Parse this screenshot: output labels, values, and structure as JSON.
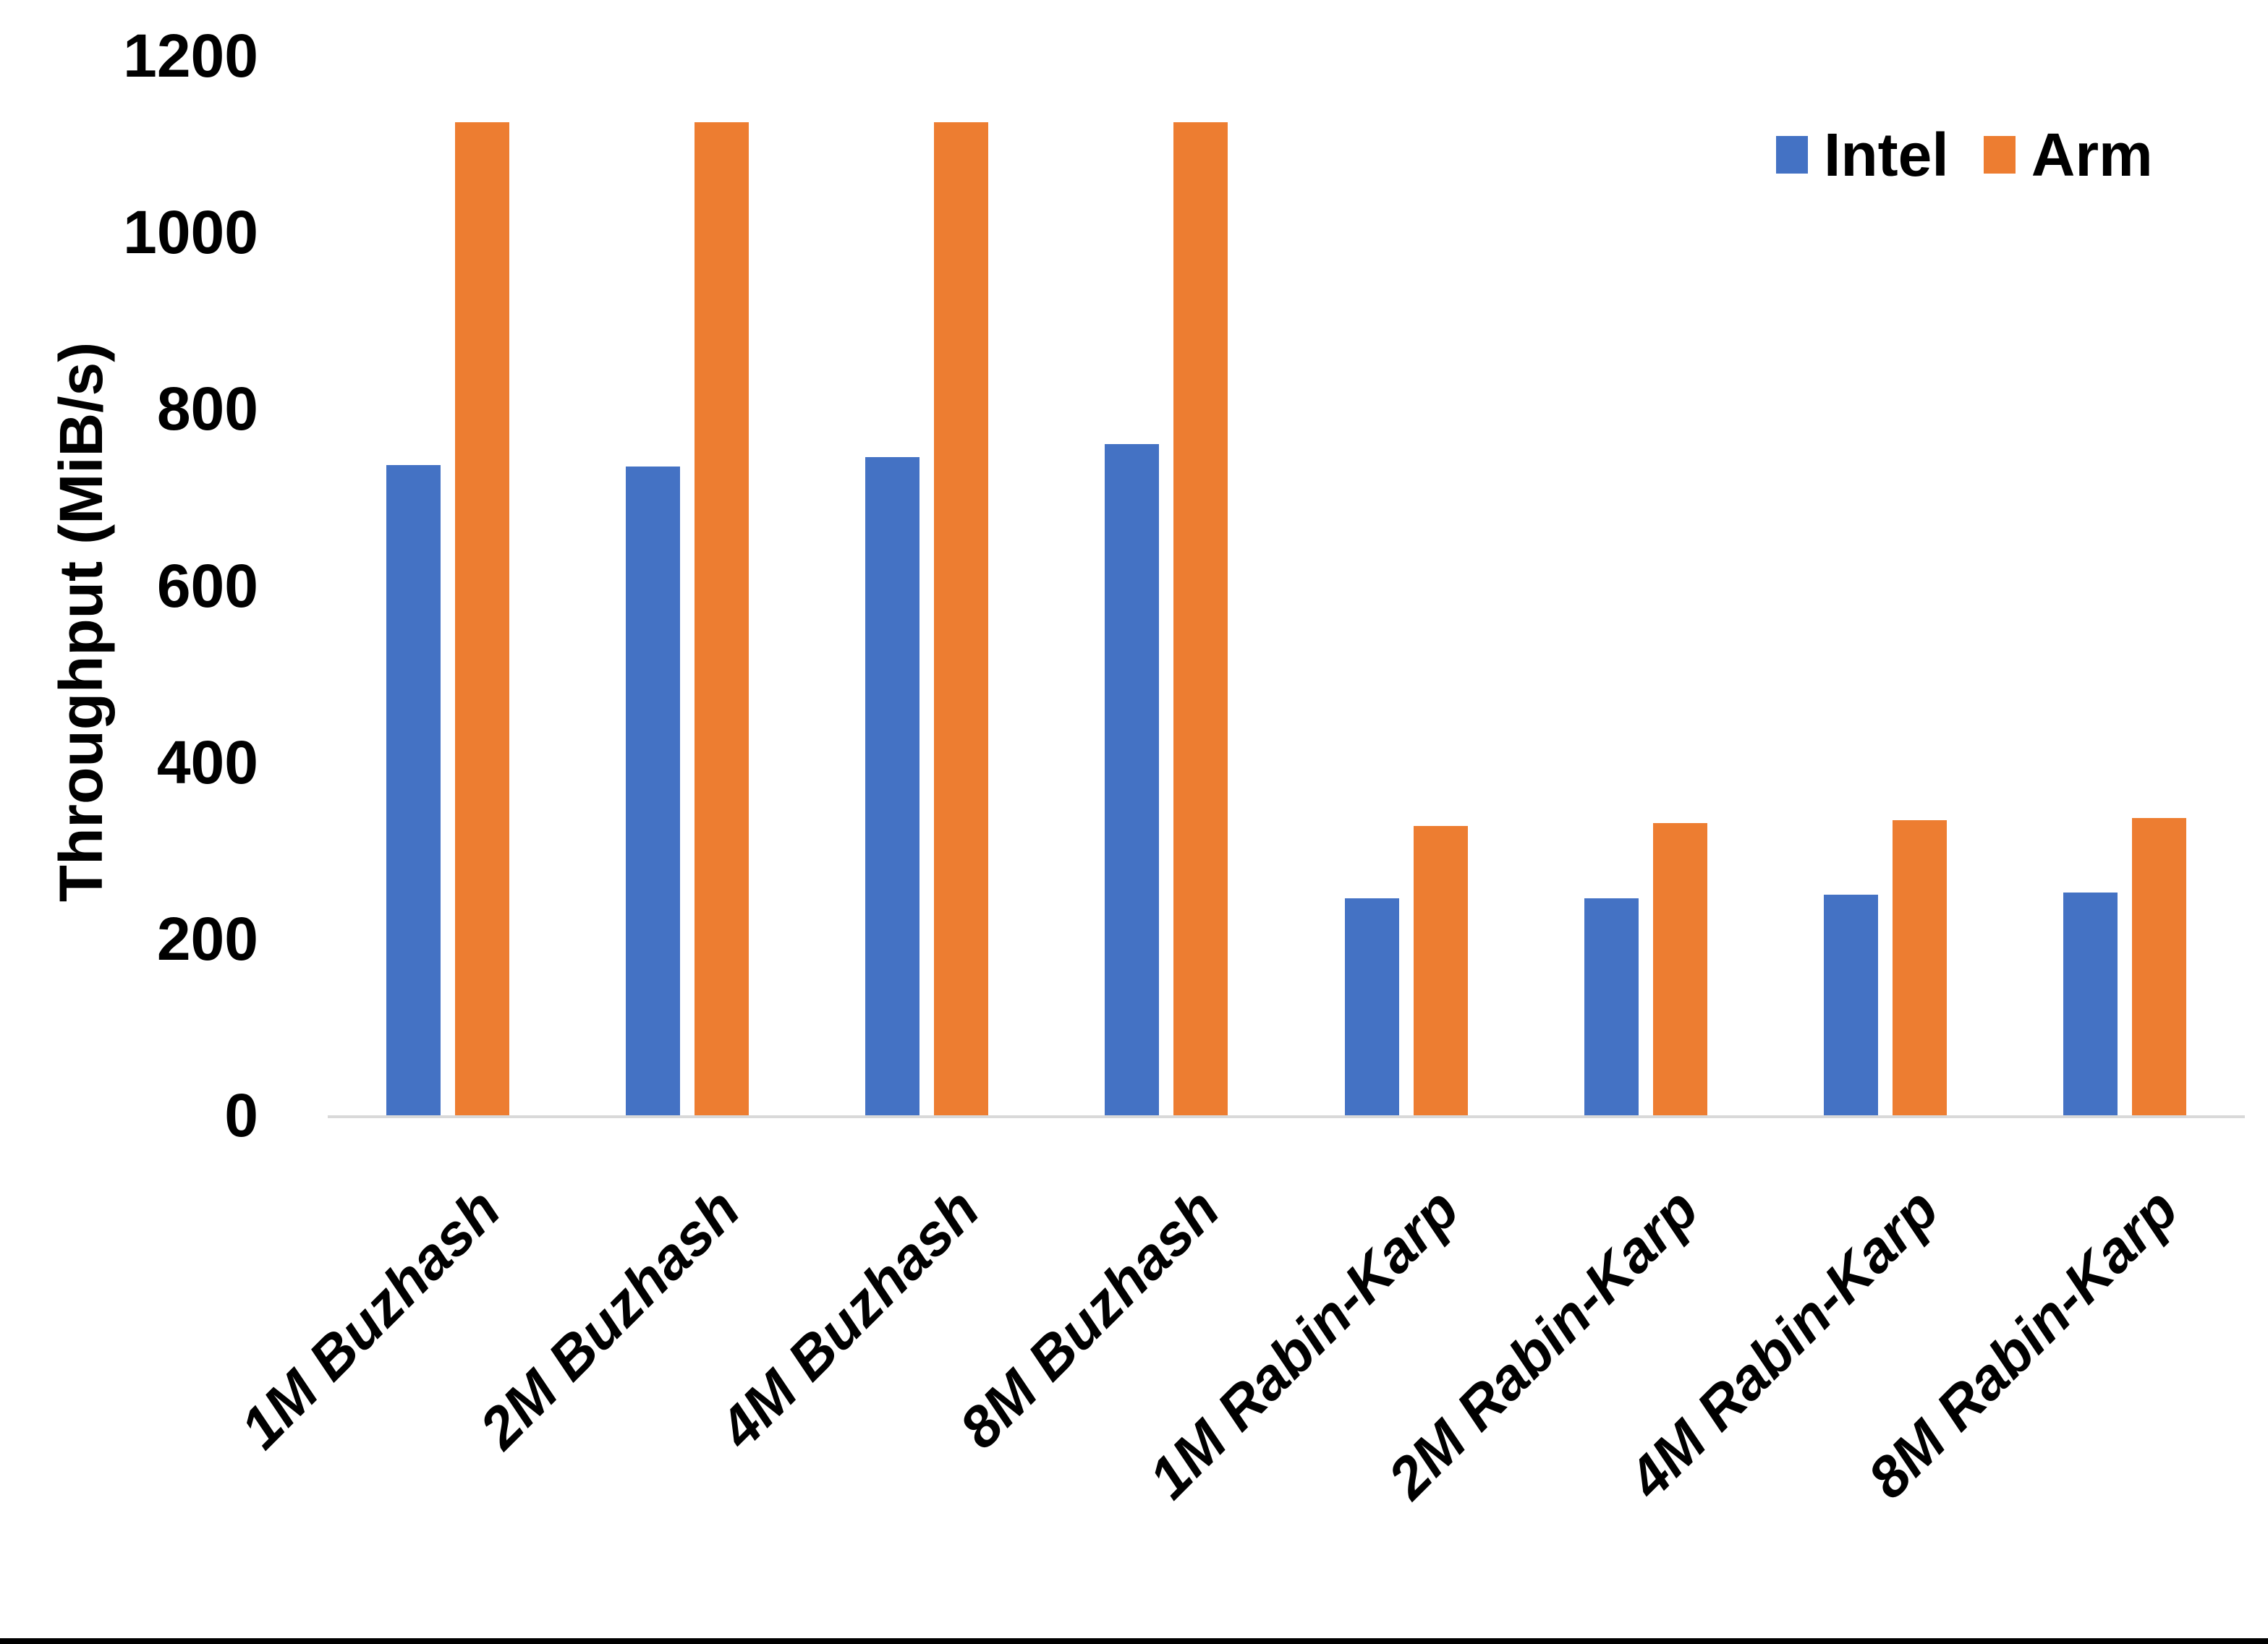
{
  "chart_data": {
    "type": "bar",
    "title": "",
    "categories": [
      "1M Buzhash",
      "2M Buzhash",
      "4M Buzhash",
      "8M Buzhash",
      "1M Rabin-Karp",
      "2M Rabin-Karp",
      "4M Rabin-Karp",
      "8M Rabin-Karp"
    ],
    "series": [
      {
        "name": "Intel",
        "color": "#4472C4",
        "values": [
          736,
          735,
          745,
          760,
          246,
          246,
          250,
          252
        ]
      },
      {
        "name": "Arm",
        "color": "#ED7D31",
        "values": [
          1125,
          1125,
          1125,
          1125,
          328,
          331,
          334,
          337
        ]
      }
    ],
    "xlabel": "",
    "ylabel": "Throughput (MiB/s)",
    "ylim": [
      0,
      1200
    ],
    "ytick_step": 200,
    "yticks": [
      0,
      200,
      400,
      600,
      800,
      1000,
      1200
    ],
    "grid": false,
    "legend_position": "top-right"
  },
  "colors": {
    "axis_line": "#D9D9D9",
    "background": "#FFFFFF",
    "text": "#000000",
    "bottom_border": "#000000"
  }
}
